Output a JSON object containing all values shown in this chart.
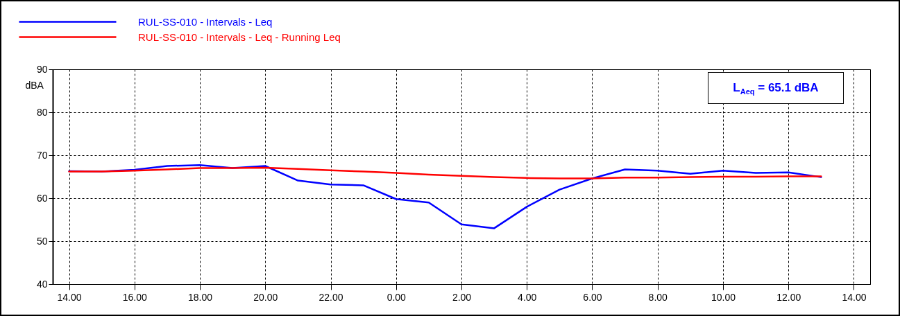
{
  "chart_data": {
    "type": "line",
    "ylabel": "dBA",
    "categories": [
      "14.00",
      null,
      "16.00",
      null,
      "18.00",
      null,
      "20.00",
      null,
      "22.00",
      null,
      "0.00",
      null,
      "2.00",
      null,
      "4.00",
      null,
      "6.00",
      null,
      "8.00",
      null,
      "10.00",
      null,
      "12.00",
      null,
      "14.00"
    ],
    "series": [
      {
        "name": "RUL-SS-010 - Intervals - Leq",
        "color": "#0000ff",
        "values": [
          66.3,
          66.2,
          66.6,
          67.5,
          67.7,
          67.0,
          67.5,
          64.1,
          63.2,
          63.0,
          59.8,
          59.0,
          53.9,
          53.0,
          58.0,
          62.0,
          64.6,
          66.7,
          66.4,
          65.7,
          66.4,
          65.9,
          66.0,
          64.9,
          null
        ]
      },
      {
        "name": "RUL-SS-010 - Intervals - Leq - Running Leq",
        "color": "#ff0000",
        "values": [
          66.2,
          66.2,
          66.4,
          66.7,
          67.0,
          67.0,
          67.1,
          66.8,
          66.5,
          66.2,
          65.9,
          65.5,
          65.2,
          64.9,
          64.7,
          64.6,
          64.6,
          64.8,
          64.8,
          64.9,
          65.0,
          65.0,
          65.1,
          65.1,
          null
        ]
      }
    ],
    "ylim": [
      40,
      90
    ],
    "yticks": [
      40,
      50,
      60,
      70,
      80,
      90
    ],
    "grid": true,
    "legend": "top left",
    "line_style": "solid",
    "marker": "none",
    "annotations": [
      "L$_{Aeq}$ = 65.1 dBA"
    ]
  }
}
